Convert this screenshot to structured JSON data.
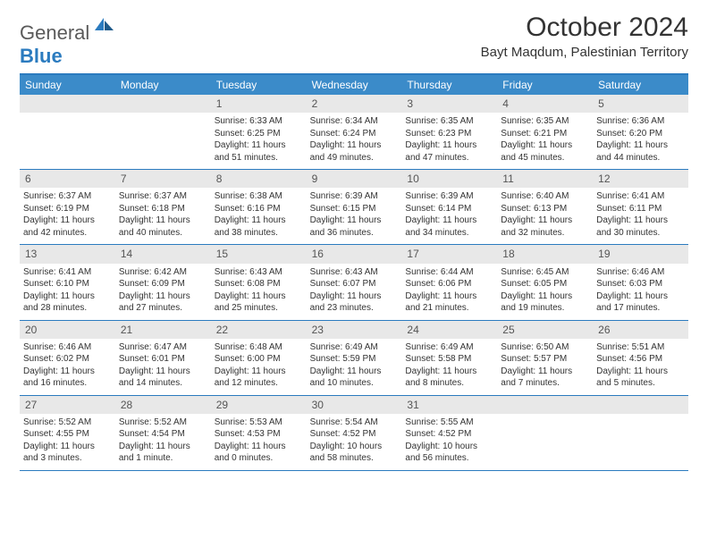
{
  "logo": {
    "text1": "General",
    "text2": "Blue"
  },
  "title": "October 2024",
  "location": "Bayt Maqdum, Palestinian Territory",
  "colors": {
    "headerBg": "#3b8bc9",
    "borderBlue": "#2b7bbf",
    "dayNumBg": "#e8e8e8",
    "text": "#333333"
  },
  "dayNames": [
    "Sunday",
    "Monday",
    "Tuesday",
    "Wednesday",
    "Thursday",
    "Friday",
    "Saturday"
  ],
  "weeks": [
    [
      null,
      null,
      {
        "n": "1",
        "sr": "6:33 AM",
        "ss": "6:25 PM",
        "dl": "11 hours and 51 minutes."
      },
      {
        "n": "2",
        "sr": "6:34 AM",
        "ss": "6:24 PM",
        "dl": "11 hours and 49 minutes."
      },
      {
        "n": "3",
        "sr": "6:35 AM",
        "ss": "6:23 PM",
        "dl": "11 hours and 47 minutes."
      },
      {
        "n": "4",
        "sr": "6:35 AM",
        "ss": "6:21 PM",
        "dl": "11 hours and 45 minutes."
      },
      {
        "n": "5",
        "sr": "6:36 AM",
        "ss": "6:20 PM",
        "dl": "11 hours and 44 minutes."
      }
    ],
    [
      {
        "n": "6",
        "sr": "6:37 AM",
        "ss": "6:19 PM",
        "dl": "11 hours and 42 minutes."
      },
      {
        "n": "7",
        "sr": "6:37 AM",
        "ss": "6:18 PM",
        "dl": "11 hours and 40 minutes."
      },
      {
        "n": "8",
        "sr": "6:38 AM",
        "ss": "6:16 PM",
        "dl": "11 hours and 38 minutes."
      },
      {
        "n": "9",
        "sr": "6:39 AM",
        "ss": "6:15 PM",
        "dl": "11 hours and 36 minutes."
      },
      {
        "n": "10",
        "sr": "6:39 AM",
        "ss": "6:14 PM",
        "dl": "11 hours and 34 minutes."
      },
      {
        "n": "11",
        "sr": "6:40 AM",
        "ss": "6:13 PM",
        "dl": "11 hours and 32 minutes."
      },
      {
        "n": "12",
        "sr": "6:41 AM",
        "ss": "6:11 PM",
        "dl": "11 hours and 30 minutes."
      }
    ],
    [
      {
        "n": "13",
        "sr": "6:41 AM",
        "ss": "6:10 PM",
        "dl": "11 hours and 28 minutes."
      },
      {
        "n": "14",
        "sr": "6:42 AM",
        "ss": "6:09 PM",
        "dl": "11 hours and 27 minutes."
      },
      {
        "n": "15",
        "sr": "6:43 AM",
        "ss": "6:08 PM",
        "dl": "11 hours and 25 minutes."
      },
      {
        "n": "16",
        "sr": "6:43 AM",
        "ss": "6:07 PM",
        "dl": "11 hours and 23 minutes."
      },
      {
        "n": "17",
        "sr": "6:44 AM",
        "ss": "6:06 PM",
        "dl": "11 hours and 21 minutes."
      },
      {
        "n": "18",
        "sr": "6:45 AM",
        "ss": "6:05 PM",
        "dl": "11 hours and 19 minutes."
      },
      {
        "n": "19",
        "sr": "6:46 AM",
        "ss": "6:03 PM",
        "dl": "11 hours and 17 minutes."
      }
    ],
    [
      {
        "n": "20",
        "sr": "6:46 AM",
        "ss": "6:02 PM",
        "dl": "11 hours and 16 minutes."
      },
      {
        "n": "21",
        "sr": "6:47 AM",
        "ss": "6:01 PM",
        "dl": "11 hours and 14 minutes."
      },
      {
        "n": "22",
        "sr": "6:48 AM",
        "ss": "6:00 PM",
        "dl": "11 hours and 12 minutes."
      },
      {
        "n": "23",
        "sr": "6:49 AM",
        "ss": "5:59 PM",
        "dl": "11 hours and 10 minutes."
      },
      {
        "n": "24",
        "sr": "6:49 AM",
        "ss": "5:58 PM",
        "dl": "11 hours and 8 minutes."
      },
      {
        "n": "25",
        "sr": "6:50 AM",
        "ss": "5:57 PM",
        "dl": "11 hours and 7 minutes."
      },
      {
        "n": "26",
        "sr": "5:51 AM",
        "ss": "4:56 PM",
        "dl": "11 hours and 5 minutes."
      }
    ],
    [
      {
        "n": "27",
        "sr": "5:52 AM",
        "ss": "4:55 PM",
        "dl": "11 hours and 3 minutes."
      },
      {
        "n": "28",
        "sr": "5:52 AM",
        "ss": "4:54 PM",
        "dl": "11 hours and 1 minute."
      },
      {
        "n": "29",
        "sr": "5:53 AM",
        "ss": "4:53 PM",
        "dl": "11 hours and 0 minutes."
      },
      {
        "n": "30",
        "sr": "5:54 AM",
        "ss": "4:52 PM",
        "dl": "10 hours and 58 minutes."
      },
      {
        "n": "31",
        "sr": "5:55 AM",
        "ss": "4:52 PM",
        "dl": "10 hours and 56 minutes."
      },
      null,
      null
    ]
  ],
  "labels": {
    "sunrise": "Sunrise:",
    "sunset": "Sunset:",
    "daylight": "Daylight:"
  }
}
